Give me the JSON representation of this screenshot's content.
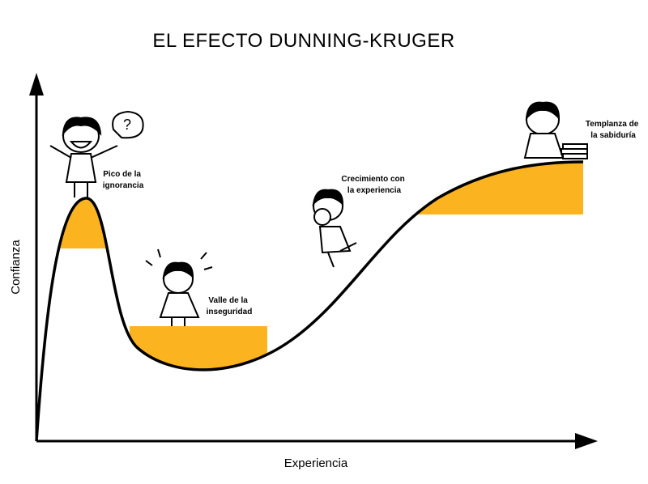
{
  "title": "EL EFECTO  DUNNING-KRUGER",
  "axes": {
    "y_label": "Confianza",
    "x_label": "Experiencia"
  },
  "stages": [
    {
      "lines": [
        "Pico de la",
        "ignorancia"
      ]
    },
    {
      "lines": [
        "Valle de la",
        "inseguridad"
      ]
    },
    {
      "lines": [
        "Crecimiento con",
        "la experiencia"
      ]
    },
    {
      "lines": [
        "Templanza de",
        "la sabiduría"
      ]
    }
  ]
}
